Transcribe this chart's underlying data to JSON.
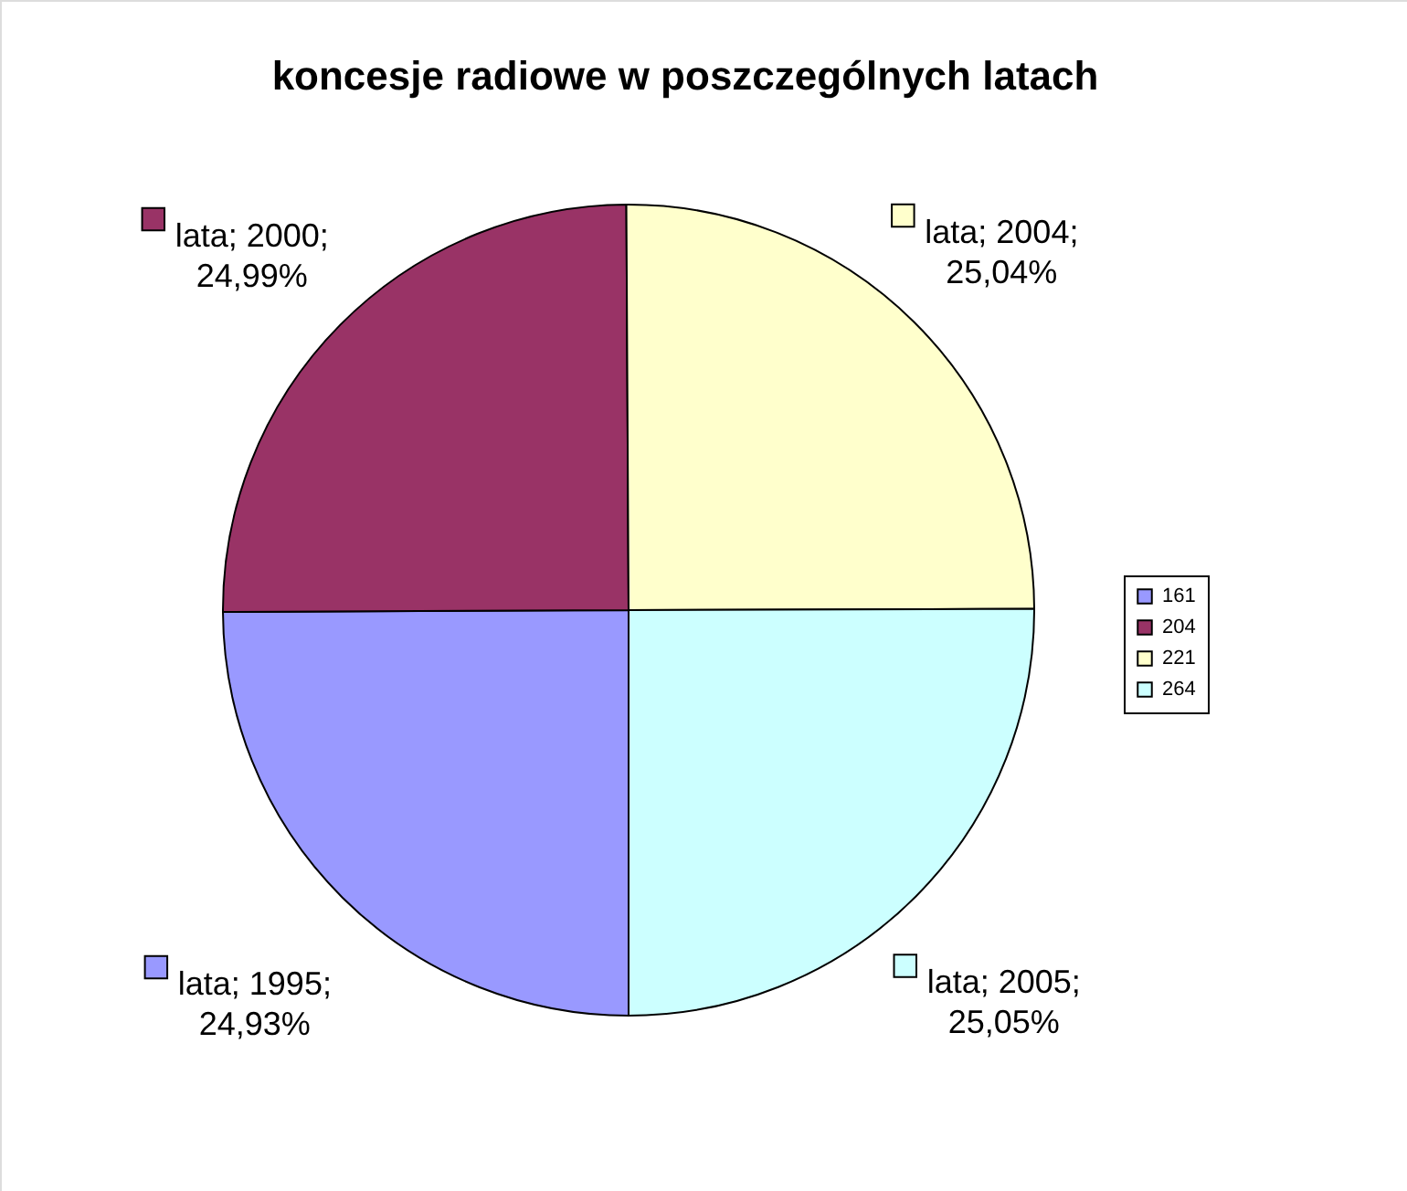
{
  "chart_data": {
    "type": "pie",
    "title": "koncesje radiowe w poszczególnych latach",
    "categories": [
      "161",
      "204",
      "221",
      "264"
    ],
    "values": [
      1995,
      2000,
      2004,
      2005
    ],
    "colors": [
      "#9999ff",
      "#993366",
      "#ffffcc",
      "#ccffff"
    ],
    "value_labels": [
      "lata; 1995; 24,93%",
      "lata; 2000; 24,99%",
      "lata; 2004; 25,04%",
      "lata; 2005; 25,05%"
    ],
    "legend": "right"
  }
}
